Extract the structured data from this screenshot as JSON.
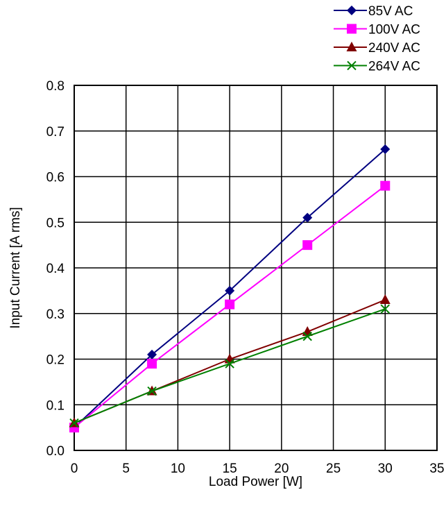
{
  "chart_data": {
    "type": "line",
    "title": "",
    "xlabel": "Load Power [W]",
    "ylabel": "Input Current  [A rms]",
    "xlim": [
      0,
      35
    ],
    "ylim": [
      0,
      0.8
    ],
    "x_ticks": [
      "0",
      "5",
      "10",
      "15",
      "20",
      "25",
      "30",
      "35"
    ],
    "y_ticks": [
      "0.0",
      "0.1",
      "0.2",
      "0.3",
      "0.4",
      "0.5",
      "0.6",
      "0.7",
      "0.8"
    ],
    "grid": true,
    "legend_position": "top-right",
    "x": [
      0,
      7.5,
      15,
      22.5,
      30
    ],
    "series": [
      {
        "name": "85V AC",
        "color": "#000080",
        "marker": "diamond",
        "values": [
          0.05,
          0.21,
          0.35,
          0.51,
          0.66
        ]
      },
      {
        "name": "100V AC",
        "color": "#FF00FF",
        "marker": "square",
        "values": [
          0.05,
          0.19,
          0.32,
          0.45,
          0.58
        ]
      },
      {
        "name": "240V AC",
        "color": "#800000",
        "marker": "triangle",
        "values": [
          0.06,
          0.13,
          0.2,
          0.26,
          0.33
        ]
      },
      {
        "name": "264V AC",
        "color": "#008000",
        "marker": "x",
        "values": [
          0.06,
          0.13,
          0.19,
          0.25,
          0.31
        ]
      }
    ]
  }
}
